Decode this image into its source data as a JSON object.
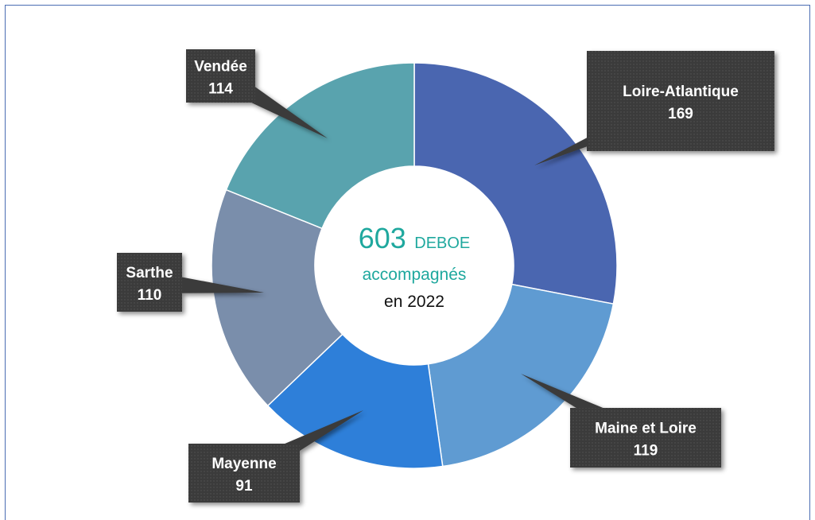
{
  "chart_data": {
    "type": "pie",
    "categories": [
      "Loire-Atlantique",
      "Maine et Loire",
      "Mayenne",
      "Sarthe",
      "Vendée"
    ],
    "values": [
      169,
      119,
      91,
      110,
      114
    ],
    "colors": [
      "#4a66b0",
      "#5f9bd2",
      "#2e7fd9",
      "#7a8eab",
      "#59a3ae"
    ],
    "donut": true,
    "center_text": {
      "number": "603",
      "word": "DEBOE",
      "line2": "accompagnés",
      "line3": "en 2022"
    },
    "label_style": "dark callout boxes with white bold text"
  }
}
